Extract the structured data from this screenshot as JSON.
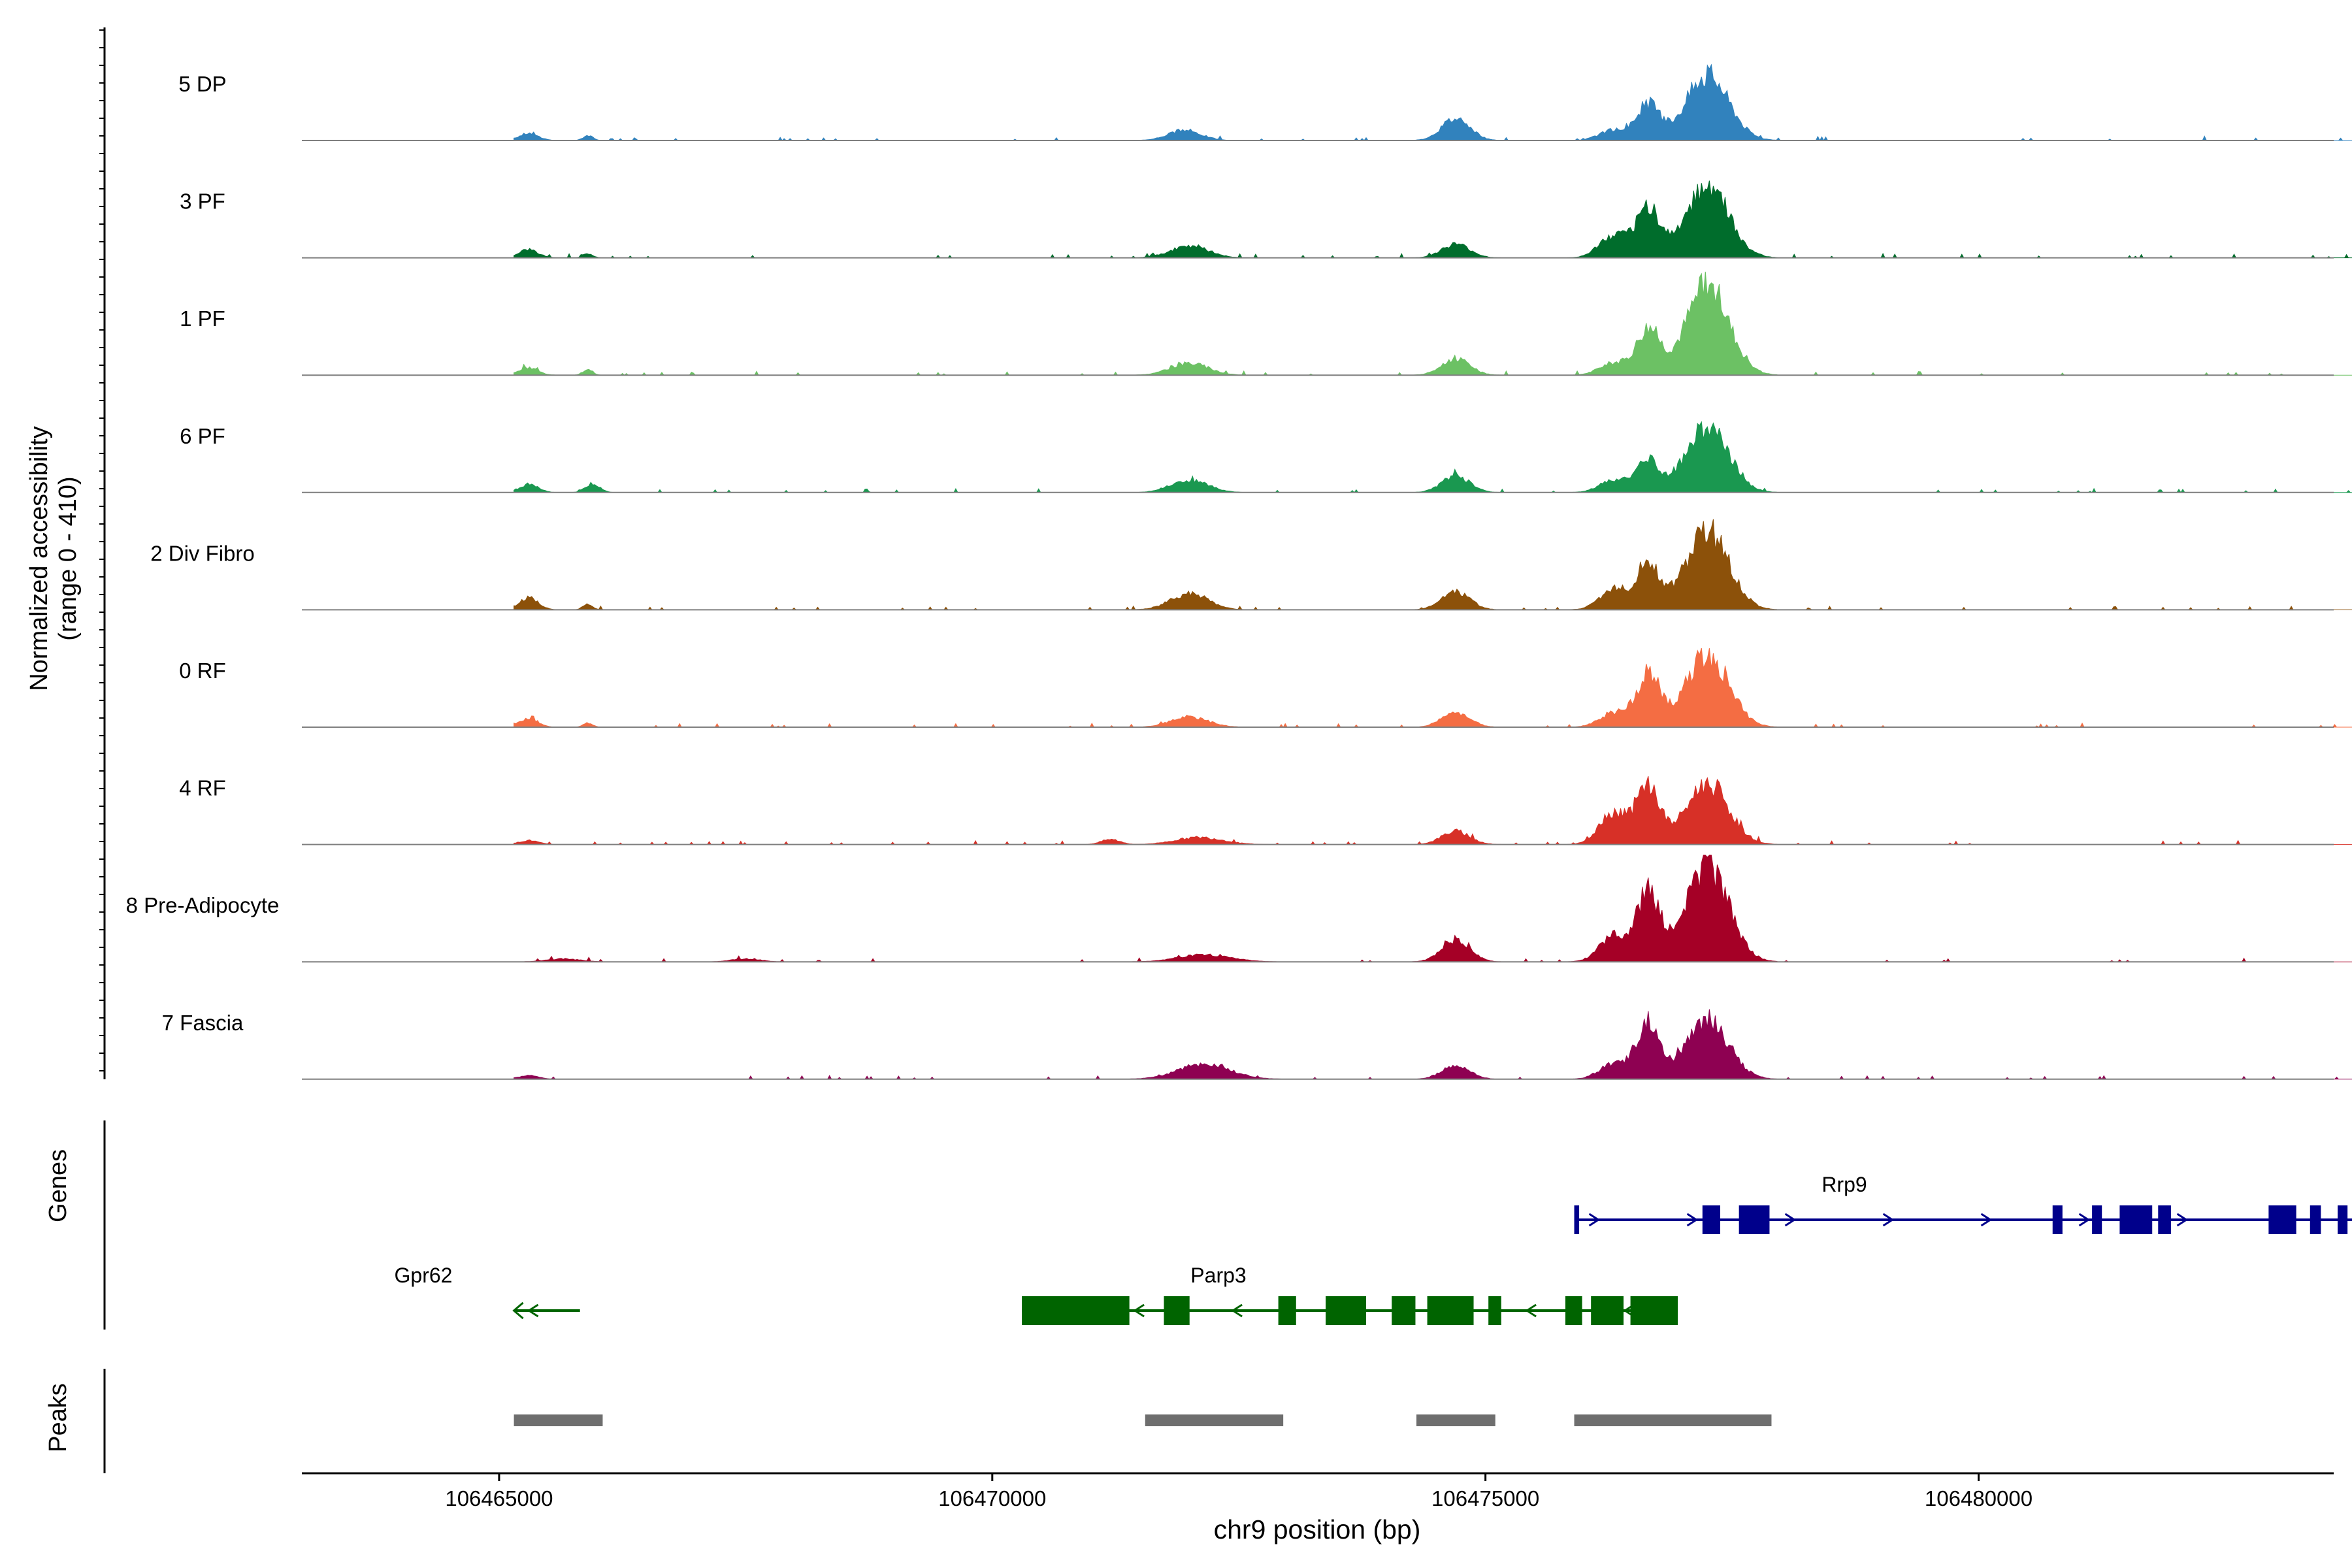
{
  "chart_data": {
    "type": "area",
    "title": "",
    "ylabel_line1": "Normalized accessibility",
    "ylabel_line2": "(range 0 - 410)",
    "xlabel": "chr9 position (bp)",
    "xlim": [
      106463000,
      106483600
    ],
    "x_ticks": [
      106465000,
      106470000,
      106475000,
      106480000
    ],
    "x_tick_labels": [
      "106465000",
      "106470000",
      "106475000",
      "106480000"
    ],
    "y_range": [
      0,
      410
    ],
    "series": [
      {
        "name": "5 DP",
        "color": "#3182BD",
        "peaks": [
          [
            106465100,
            106465500,
            0.07
          ],
          [
            106465800,
            106466000,
            0.05
          ],
          [
            106471600,
            106472300,
            0.1
          ],
          [
            106474400,
            106475000,
            0.22
          ],
          [
            106476000,
            106476600,
            0.1
          ],
          [
            106476400,
            106476900,
            0.35
          ],
          [
            106476800,
            106477700,
            0.65
          ]
        ]
      },
      {
        "name": "3 PF",
        "color": "#006D2C",
        "peaks": [
          [
            106465100,
            106465500,
            0.08
          ],
          [
            106465800,
            106466000,
            0.04
          ],
          [
            106471600,
            106472400,
            0.12
          ],
          [
            106474400,
            106475000,
            0.13
          ],
          [
            106476000,
            106476600,
            0.22
          ],
          [
            106476400,
            106476900,
            0.48
          ],
          [
            106476800,
            106477700,
            0.72
          ]
        ]
      },
      {
        "name": "1 PF",
        "color": "#6CC164",
        "peaks": [
          [
            106465100,
            106465500,
            0.07
          ],
          [
            106465800,
            106466000,
            0.06
          ],
          [
            106471600,
            106472400,
            0.12
          ],
          [
            106474400,
            106475000,
            0.16
          ],
          [
            106476000,
            106476600,
            0.12
          ],
          [
            106476400,
            106476900,
            0.45
          ],
          [
            106476800,
            106477700,
            0.88
          ]
        ]
      },
      {
        "name": "6 PF",
        "color": "#1A9850",
        "peaks": [
          [
            106465100,
            106465500,
            0.08
          ],
          [
            106465800,
            106466100,
            0.09
          ],
          [
            106471600,
            106472400,
            0.12
          ],
          [
            106474400,
            106475000,
            0.16
          ],
          [
            106476000,
            106476600,
            0.12
          ],
          [
            106476400,
            106476900,
            0.3
          ],
          [
            106476800,
            106477700,
            0.65
          ]
        ]
      },
      {
        "name": "2 Div Fibro",
        "color": "#8C510A",
        "peaks": [
          [
            106465100,
            106465500,
            0.12
          ],
          [
            106465800,
            106466000,
            0.06
          ],
          [
            106471600,
            106472400,
            0.16
          ],
          [
            106474400,
            106475000,
            0.18
          ],
          [
            106476000,
            106476600,
            0.2
          ],
          [
            106476400,
            106476900,
            0.45
          ],
          [
            106476800,
            106477700,
            0.78
          ]
        ]
      },
      {
        "name": "0 RF",
        "color": "#F46D43",
        "peaks": [
          [
            106465100,
            106465500,
            0.08
          ],
          [
            106465800,
            106466000,
            0.04
          ],
          [
            106471600,
            106472400,
            0.1
          ],
          [
            106474400,
            106475000,
            0.14
          ],
          [
            106476000,
            106476600,
            0.14
          ],
          [
            106476400,
            106476900,
            0.52
          ],
          [
            106476800,
            106477700,
            0.72
          ]
        ]
      },
      {
        "name": "4 RF",
        "color": "#D73027",
        "peaks": [
          [
            106465100,
            106465500,
            0.04
          ],
          [
            106471000,
            106471400,
            0.05
          ],
          [
            106471600,
            106472600,
            0.07
          ],
          [
            106474400,
            106475000,
            0.13
          ],
          [
            106476000,
            106476600,
            0.32
          ],
          [
            106476400,
            106476900,
            0.56
          ],
          [
            106476800,
            106477700,
            0.6
          ]
        ]
      },
      {
        "name": "8 Pre-Adipocyte",
        "color": "#A50026",
        "peaks": [
          [
            106465300,
            106466000,
            0.03
          ],
          [
            106467200,
            106467800,
            0.03
          ],
          [
            106471600,
            106472700,
            0.07
          ],
          [
            106474400,
            106475000,
            0.22
          ],
          [
            106476000,
            106476600,
            0.25
          ],
          [
            106476400,
            106476900,
            0.68
          ],
          [
            106476800,
            106477700,
            0.95
          ]
        ]
      },
      {
        "name": "7 Fascia",
        "color": "#8E0152",
        "peaks": [
          [
            106465100,
            106465500,
            0.04
          ],
          [
            106471600,
            106472700,
            0.15
          ],
          [
            106474400,
            106475000,
            0.13
          ],
          [
            106476000,
            106476600,
            0.15
          ],
          [
            106476400,
            106476900,
            0.55
          ],
          [
            106476800,
            106477700,
            0.58
          ]
        ]
      }
    ],
    "genes_label": "Genes",
    "genes": [
      {
        "name": "Rrp9",
        "strand": "+",
        "color": "#00008B",
        "start": 106475900,
        "end": 106483900,
        "exons": [
          [
            106475900,
            106475950
          ],
          [
            106477200,
            106477380
          ],
          [
            106477570,
            106477880
          ],
          [
            106480750,
            106480850
          ],
          [
            106481150,
            106481250
          ],
          [
            106481430,
            106481760
          ],
          [
            106481820,
            106481950
          ],
          [
            106482940,
            106483220
          ],
          [
            106483360,
            106483470
          ],
          [
            106483640,
            106483740
          ]
        ]
      },
      {
        "name": "Gpr62",
        "strand": "-",
        "color": "#006400",
        "start": 106465150,
        "end": 106465820,
        "exons": []
      },
      {
        "name": "Parp3",
        "strand": "-",
        "color": "#006400",
        "start": 106470300,
        "end": 106476950,
        "exons": [
          [
            106470300,
            106471390
          ],
          [
            106471740,
            106472000
          ],
          [
            106472900,
            106473080
          ],
          [
            106473380,
            106473790
          ],
          [
            106474050,
            106474290
          ],
          [
            106474410,
            106474880
          ],
          [
            106475030,
            106475160
          ],
          [
            106475810,
            106475980
          ],
          [
            106476070,
            106476400
          ],
          [
            106476470,
            106476950
          ]
        ]
      }
    ],
    "peaks_label": "Peaks",
    "peak_regions": [
      [
        106465150,
        106466050
      ],
      [
        106471550,
        106472950
      ],
      [
        106474300,
        106475100
      ],
      [
        106475900,
        106477900
      ]
    ]
  }
}
